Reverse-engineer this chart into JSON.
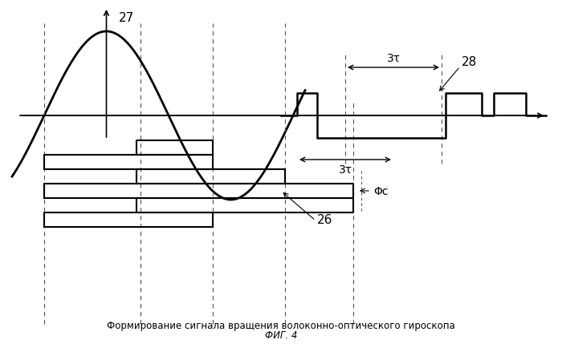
{
  "title": "Формирование сигнала вращения волоконно-оптического гироскопа",
  "subtitle": "ФИГ. 4",
  "bg_color": "#ffffff",
  "line_color": "#000000",
  "dashed_color": "#888888",
  "label_27": "27",
  "label_28": "28",
  "label_26": "26",
  "label_phi": "Φс",
  "label_3tau_top": "3τ",
  "label_3tau_bot": "3τ",
  "sine_amplitude": 0.9,
  "sine_period": 2.2,
  "fig_width": 7.0,
  "fig_height": 4.35
}
